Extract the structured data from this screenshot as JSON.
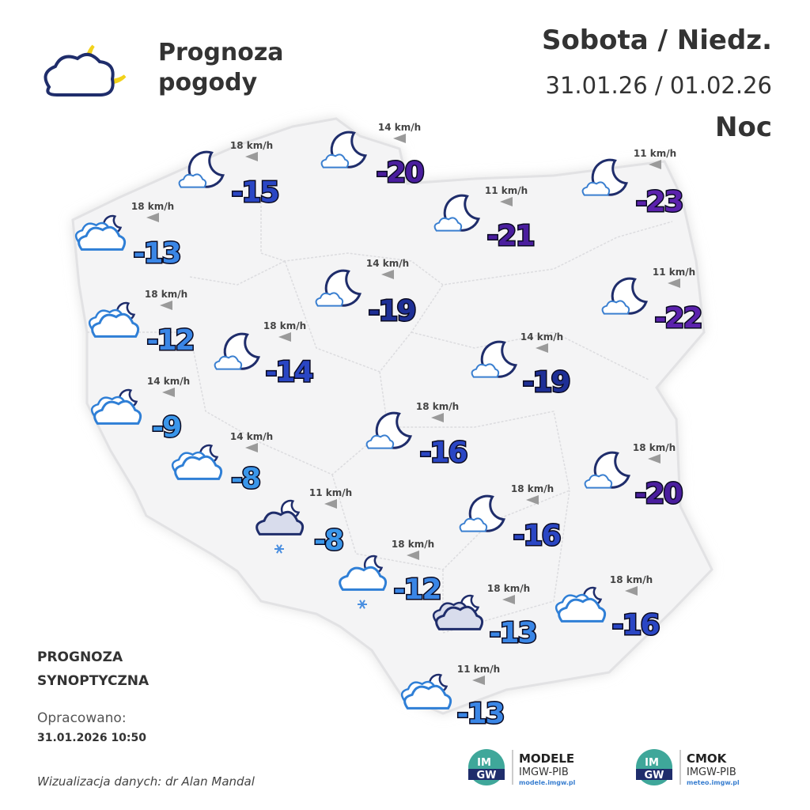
{
  "header": {
    "title_lines": [
      "Prognoza",
      "pogody"
    ],
    "days": "Sobota / Niedz.",
    "dates": "31.01.26 / 01.02.26",
    "period": "Noc"
  },
  "stations": [
    {
      "temperature": -20,
      "wind": "14 km/h",
      "color": "#4a1e9e"
    },
    {
      "temperature": -15,
      "wind": "18 km/h",
      "color": "#2a46c4"
    },
    {
      "temperature": -23,
      "wind": "11 km/h",
      "color": "#5b22ad"
    },
    {
      "temperature": -21,
      "wind": "11 km/h",
      "color": "#4a1e9e"
    },
    {
      "temperature": -13,
      "wind": "18 km/h",
      "color": "#3a86e6"
    },
    {
      "temperature": -19,
      "wind": "14 km/h",
      "color": "#1e2f96"
    },
    {
      "temperature": -22,
      "wind": "11 km/h",
      "color": "#5b22ad"
    },
    {
      "temperature": -12,
      "wind": "18 km/h",
      "color": "#3a86e6"
    },
    {
      "temperature": -14,
      "wind": "18 km/h",
      "color": "#2a46c4"
    },
    {
      "temperature": -19,
      "wind": "14 km/h",
      "color": "#1e2f96"
    },
    {
      "temperature": -9,
      "wind": "14 km/h",
      "color": "#3a96ea"
    },
    {
      "temperature": -16,
      "wind": "18 km/h",
      "color": "#2a46c4"
    },
    {
      "temperature": -8,
      "wind": "14 km/h",
      "color": "#3a96ea"
    },
    {
      "temperature": -20,
      "wind": "18 km/h",
      "color": "#4a1e9e"
    },
    {
      "temperature": -8,
      "wind": "11 km/h",
      "color": "#3a96ea"
    },
    {
      "temperature": -16,
      "wind": "18 km/h",
      "color": "#2a46c4"
    },
    {
      "temperature": -12,
      "wind": "18 km/h",
      "color": "#3a86e6"
    },
    {
      "temperature": -13,
      "wind": "18 km/h",
      "color": "#3a86e6"
    },
    {
      "temperature": -16,
      "wind": "18 km/h",
      "color": "#2a46c4"
    },
    {
      "temperature": -13,
      "wind": "11 km/h",
      "color": "#3a86e6"
    }
  ],
  "footer": {
    "forecast_lines": [
      "PROGNOZA",
      "SYNOPTYCZNA"
    ],
    "prepared_label": "Opracowano:",
    "prepared_at": "31.01.2026 10:50",
    "credit": "Wizualizacja danych: dr Alan Mandal"
  },
  "logos": [
    {
      "badge_lines": [
        "IM",
        "GW"
      ],
      "name": "MODELE",
      "org": "IMGW-PIB",
      "url": "modele.imgw.pl"
    },
    {
      "badge_lines": [
        "IM",
        "GW"
      ],
      "name": "CMOK",
      "org": "IMGW-PIB",
      "url": "meteo.imgw.pl"
    }
  ]
}
